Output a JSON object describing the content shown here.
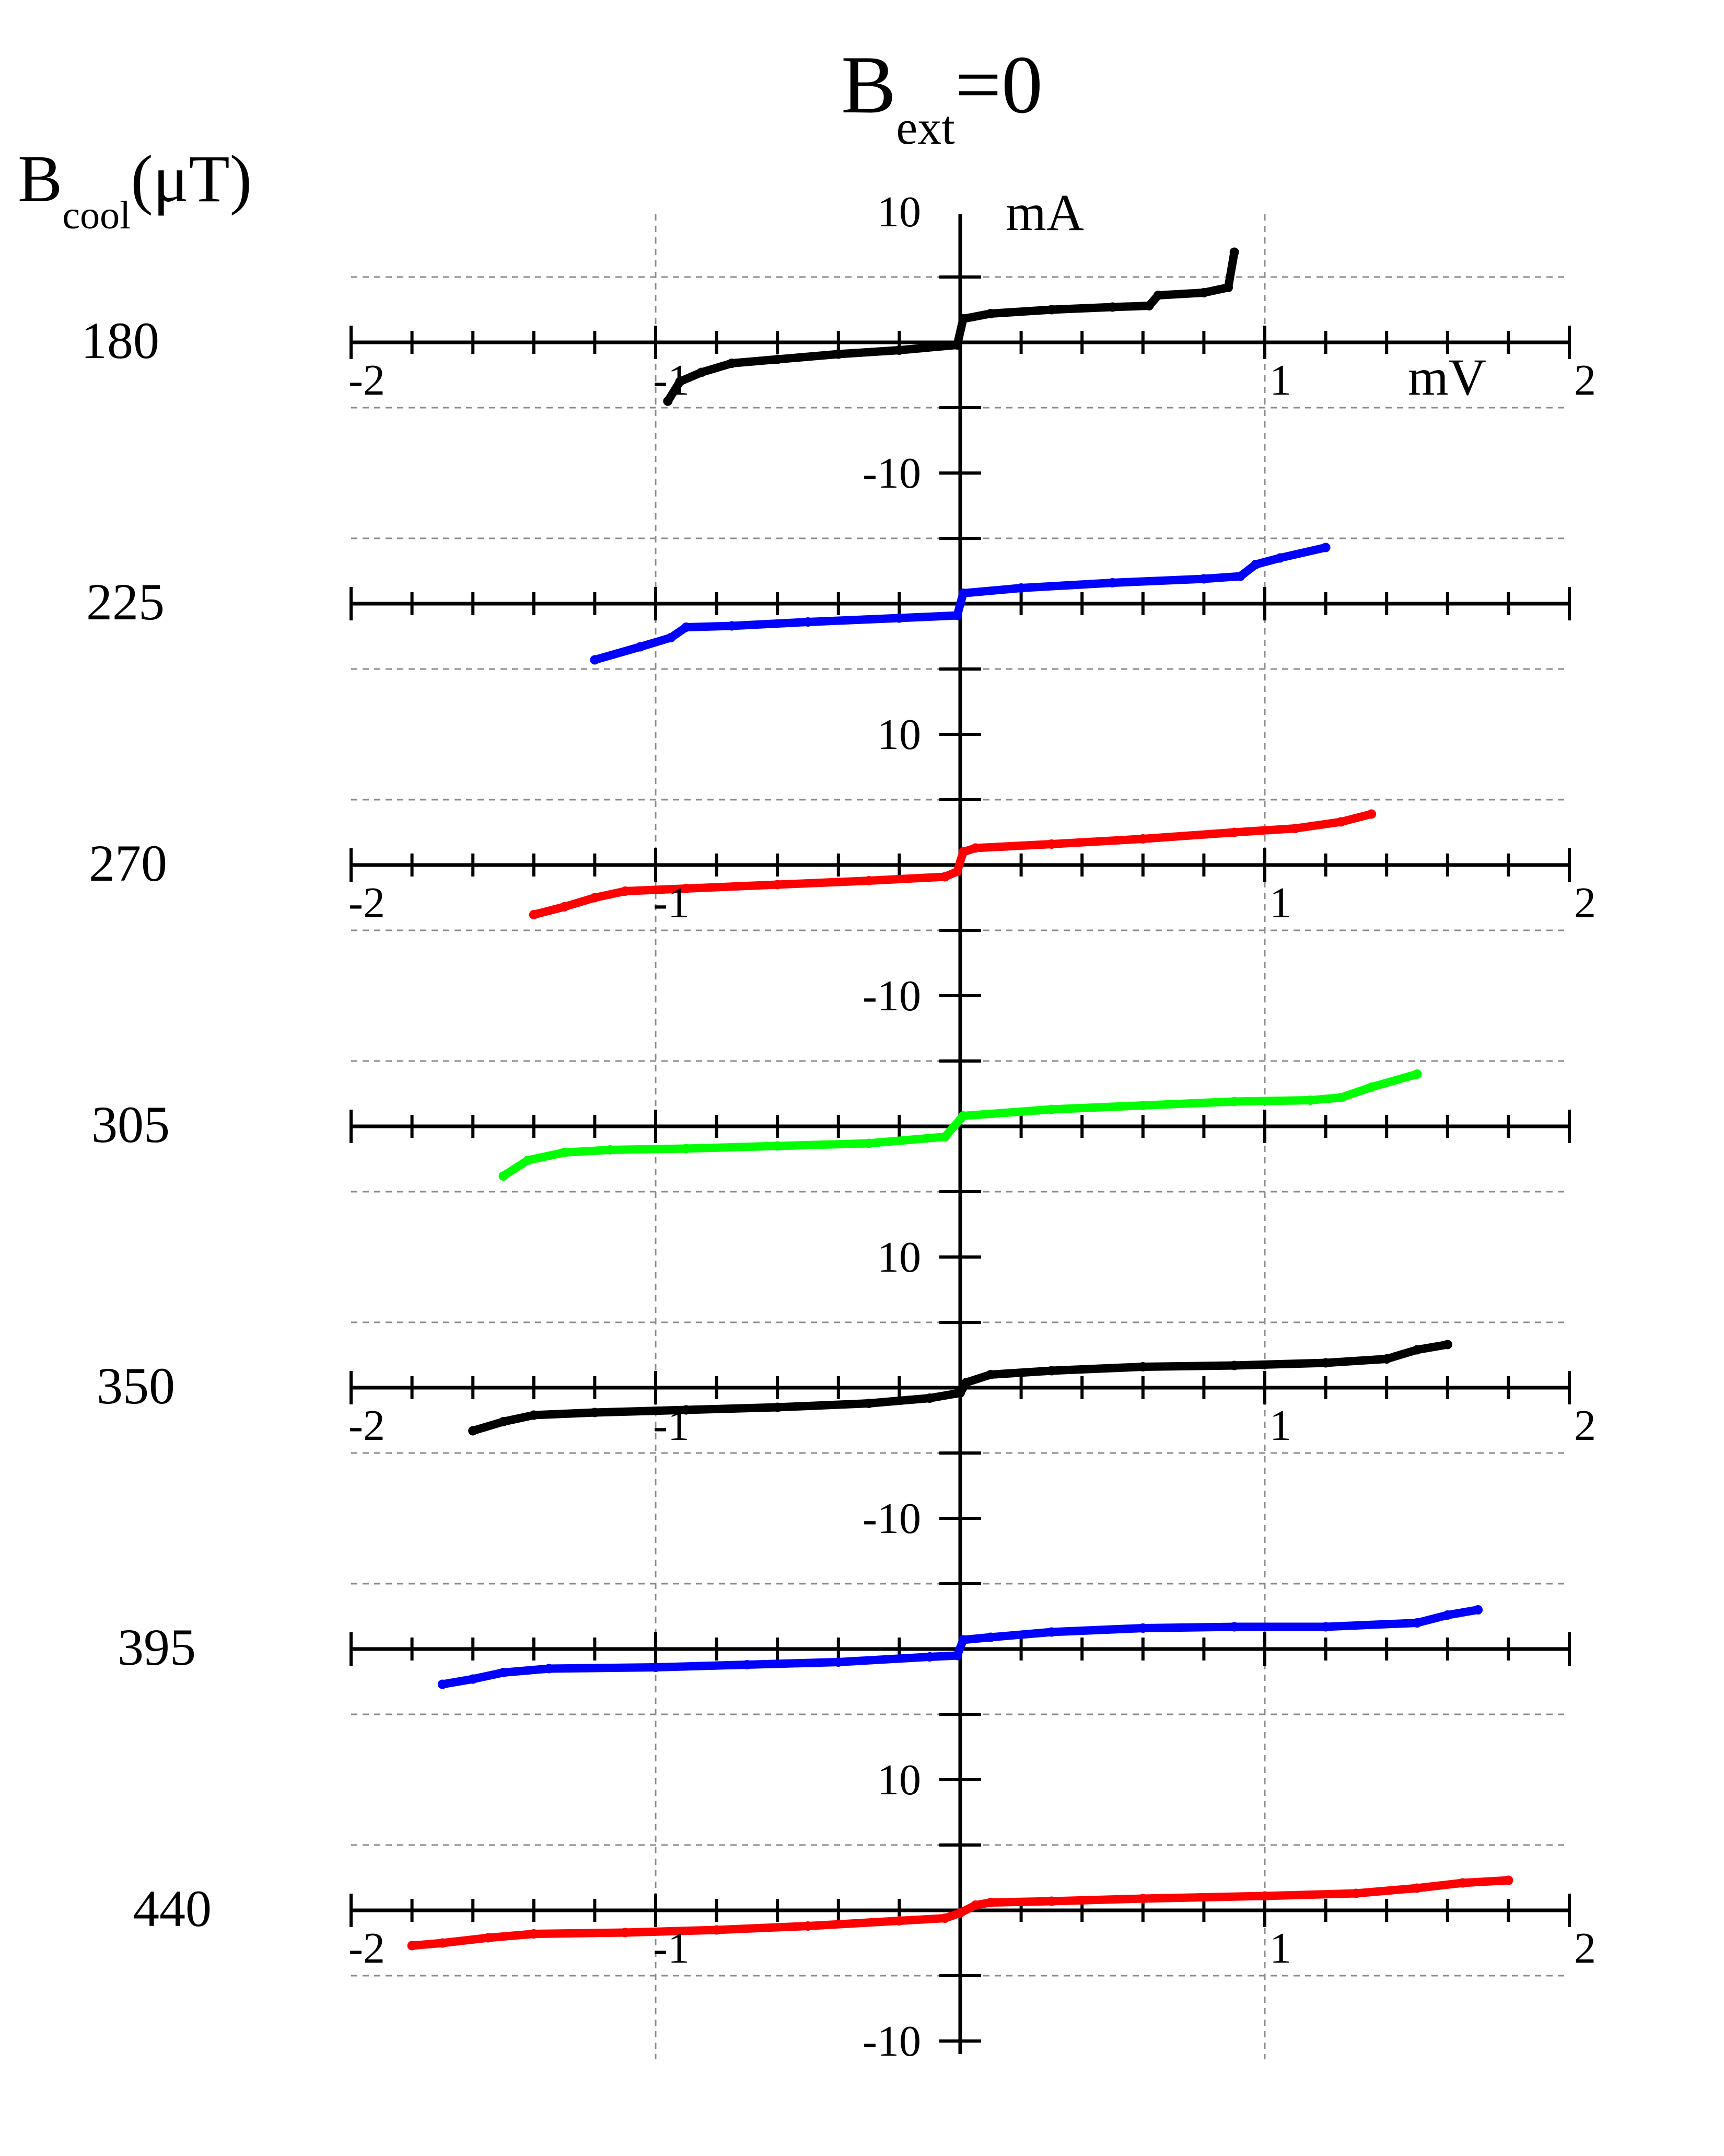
{
  "title": {
    "main": "B",
    "sub": "ext",
    "suffix": "=0"
  },
  "row_label_header": {
    "main": "B",
    "sub": "cool",
    "suffix": "(μT)"
  },
  "units": {
    "current": "mA",
    "voltage": "mV"
  },
  "colors": {
    "black": "#000000",
    "blue": "#0000ff",
    "red": "#ff0000",
    "green": "#00ff00",
    "grid": "#8c8c8c"
  },
  "chart_data": {
    "type": "scatter",
    "title": "B_ext=0",
    "xlabel": "mV",
    "ylabel": "mA",
    "xlim": [
      -2,
      2
    ],
    "ylim_per_panel": [
      -10,
      10
    ],
    "x_tick_labels": [
      "-2",
      "-1",
      "1",
      "2"
    ],
    "x_tick_label_panels": [
      0,
      2,
      4,
      6
    ],
    "y_tick_labels": [
      "10",
      "-10"
    ],
    "y_tick_label_panels": [
      0,
      2,
      4,
      6
    ],
    "grid": "dashed",
    "layout": "vertically stacked, offset panels sharing the y axis",
    "series": [
      {
        "name": "180",
        "color": "black",
        "jump": 0.0,
        "points": [
          [
            -0.96,
            -4.5
          ],
          [
            -0.92,
            -3.0
          ],
          [
            -0.85,
            -2.3
          ],
          [
            -0.75,
            -1.6
          ],
          [
            -0.6,
            -1.3
          ],
          [
            -0.4,
            -0.9
          ],
          [
            -0.2,
            -0.6
          ],
          [
            -0.01,
            -0.2
          ],
          [
            0.01,
            1.8
          ],
          [
            0.1,
            2.2
          ],
          [
            0.3,
            2.5
          ],
          [
            0.5,
            2.7
          ],
          [
            0.62,
            2.8
          ],
          [
            0.65,
            3.6
          ],
          [
            0.8,
            3.8
          ],
          [
            0.88,
            4.2
          ],
          [
            0.9,
            6.9
          ]
        ]
      },
      {
        "name": "225",
        "color": "blue",
        "jump": 0.0,
        "points": [
          [
            -1.2,
            -4.3
          ],
          [
            -1.05,
            -3.3
          ],
          [
            -0.95,
            -2.6
          ],
          [
            -0.9,
            -1.8
          ],
          [
            -0.75,
            -1.7
          ],
          [
            -0.5,
            -1.4
          ],
          [
            -0.2,
            -1.1
          ],
          [
            -0.01,
            -0.9
          ],
          [
            0.01,
            0.8
          ],
          [
            0.2,
            1.2
          ],
          [
            0.5,
            1.6
          ],
          [
            0.8,
            1.9
          ],
          [
            0.92,
            2.1
          ],
          [
            0.97,
            3.0
          ],
          [
            1.05,
            3.5
          ],
          [
            1.2,
            4.3
          ]
        ]
      },
      {
        "name": "270",
        "color": "red",
        "jump": 0.0,
        "points": [
          [
            -1.4,
            -3.8
          ],
          [
            -1.3,
            -3.2
          ],
          [
            -1.2,
            -2.5
          ],
          [
            -1.1,
            -2.0
          ],
          [
            -0.9,
            -1.8
          ],
          [
            -0.6,
            -1.5
          ],
          [
            -0.3,
            -1.2
          ],
          [
            -0.05,
            -0.9
          ],
          [
            -0.01,
            -0.5
          ],
          [
            0.01,
            1.0
          ],
          [
            0.05,
            1.3
          ],
          [
            0.3,
            1.6
          ],
          [
            0.6,
            2.0
          ],
          [
            0.9,
            2.5
          ],
          [
            1.1,
            2.8
          ],
          [
            1.25,
            3.3
          ],
          [
            1.35,
            3.9
          ]
        ]
      },
      {
        "name": "305",
        "color": "green",
        "jump": 0.0,
        "points": [
          [
            -1.5,
            -3.8
          ],
          [
            -1.42,
            -2.6
          ],
          [
            -1.3,
            -2.0
          ],
          [
            -1.15,
            -1.8
          ],
          [
            -0.9,
            -1.7
          ],
          [
            -0.6,
            -1.5
          ],
          [
            -0.3,
            -1.3
          ],
          [
            -0.05,
            -0.8
          ],
          [
            0.01,
            0.8
          ],
          [
            0.3,
            1.3
          ],
          [
            0.6,
            1.6
          ],
          [
            0.9,
            1.9
          ],
          [
            1.15,
            2.0
          ],
          [
            1.25,
            2.2
          ],
          [
            1.35,
            3.0
          ],
          [
            1.5,
            4.0
          ]
        ]
      },
      {
        "name": "350",
        "color": "black",
        "jump": 0.0,
        "points": [
          [
            -1.6,
            -3.3
          ],
          [
            -1.5,
            -2.6
          ],
          [
            -1.4,
            -2.1
          ],
          [
            -1.2,
            -1.9
          ],
          [
            -0.9,
            -1.7
          ],
          [
            -0.6,
            -1.5
          ],
          [
            -0.3,
            -1.2
          ],
          [
            -0.1,
            -0.8
          ],
          [
            0.0,
            -0.4
          ],
          [
            0.02,
            0.4
          ],
          [
            0.1,
            1.0
          ],
          [
            0.3,
            1.3
          ],
          [
            0.6,
            1.6
          ],
          [
            0.9,
            1.7
          ],
          [
            1.2,
            1.9
          ],
          [
            1.4,
            2.2
          ],
          [
            1.5,
            2.9
          ],
          [
            1.6,
            3.3
          ]
        ]
      },
      {
        "name": "395",
        "color": "blue",
        "jump": 0.0,
        "points": [
          [
            -1.7,
            -2.7
          ],
          [
            -1.6,
            -2.3
          ],
          [
            -1.5,
            -1.8
          ],
          [
            -1.35,
            -1.5
          ],
          [
            -1.0,
            -1.4
          ],
          [
            -0.7,
            -1.2
          ],
          [
            -0.4,
            -1.0
          ],
          [
            -0.1,
            -0.6
          ],
          [
            -0.01,
            -0.5
          ],
          [
            0.01,
            0.7
          ],
          [
            0.1,
            0.9
          ],
          [
            0.3,
            1.3
          ],
          [
            0.6,
            1.6
          ],
          [
            0.9,
            1.7
          ],
          [
            1.2,
            1.7
          ],
          [
            1.5,
            2.0
          ],
          [
            1.6,
            2.6
          ],
          [
            1.7,
            3.0
          ]
        ]
      },
      {
        "name": "440",
        "color": "red",
        "jump": 0.0,
        "points": [
          [
            -1.8,
            -2.7
          ],
          [
            -1.7,
            -2.5
          ],
          [
            -1.55,
            -2.1
          ],
          [
            -1.4,
            -1.8
          ],
          [
            -1.1,
            -1.7
          ],
          [
            -0.8,
            -1.5
          ],
          [
            -0.5,
            -1.2
          ],
          [
            -0.2,
            -0.8
          ],
          [
            -0.05,
            -0.6
          ],
          [
            0.0,
            -0.2
          ],
          [
            0.05,
            0.4
          ],
          [
            0.1,
            0.6
          ],
          [
            0.3,
            0.7
          ],
          [
            0.6,
            0.9
          ],
          [
            1.0,
            1.1
          ],
          [
            1.3,
            1.3
          ],
          [
            1.5,
            1.7
          ],
          [
            1.65,
            2.1
          ],
          [
            1.8,
            2.3
          ]
        ]
      }
    ]
  }
}
